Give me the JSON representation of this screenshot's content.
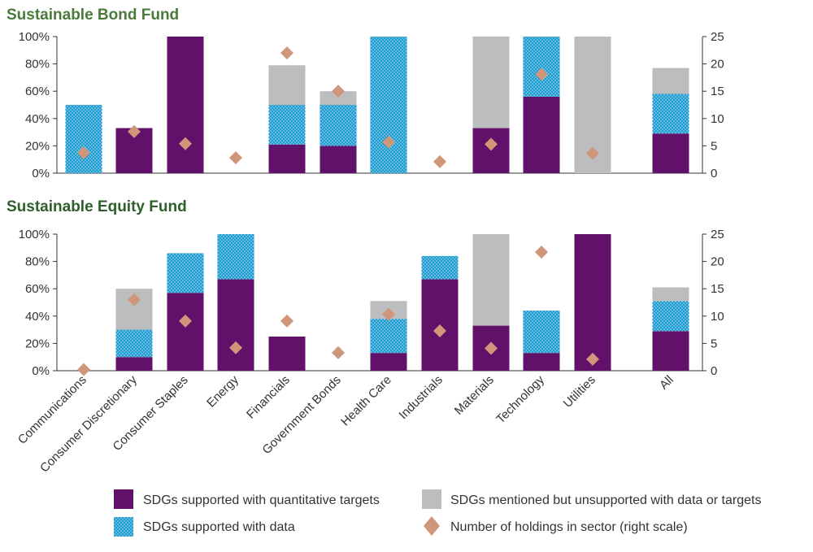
{
  "chart_data": [
    {
      "type": "bar",
      "title": "Sustainable Bond Fund",
      "categories": [
        "Communications",
        "Consumer Discretionary",
        "Consumer Staples",
        "Energy",
        "Financials",
        "Government Bonds",
        "Health Care",
        "Industrials",
        "Materials",
        "Technology",
        "Utilities",
        "All"
      ],
      "series": [
        {
          "name": "SDGs supported with quantitative targets",
          "values": [
            0,
            33,
            100,
            0,
            21,
            20,
            0,
            0,
            33,
            56,
            0,
            29
          ]
        },
        {
          "name": "SDGs supported with data",
          "values": [
            50,
            0,
            0,
            0,
            29,
            30,
            100,
            0,
            0,
            44,
            0,
            29
          ]
        },
        {
          "name": "SDGs mentioned but unsupported with data or targets",
          "values": [
            0,
            0,
            0,
            0,
            29,
            10,
            0,
            0,
            67,
            0,
            100,
            19
          ]
        },
        {
          "name": "Number of holdings in sector (right scale)",
          "axis": "right",
          "values": [
            3.7,
            7.6,
            5.4,
            2.8,
            22,
            15,
            5.7,
            2.1,
            5.3,
            18.1,
            3.6,
            null
          ]
        }
      ],
      "ylim": [
        0,
        100
      ],
      "y_ticks": [
        "0%",
        "20%",
        "40%",
        "60%",
        "80%",
        "100%"
      ],
      "y2lim": [
        0,
        25
      ],
      "y2_ticks": [
        "0",
        "5",
        "10",
        "15",
        "20",
        "25"
      ],
      "title_color": "#4a7a3a"
    },
    {
      "type": "bar",
      "title": "Sustainable Equity Fund",
      "categories": [
        "Communications",
        "Consumer Discretionary",
        "Consumer Staples",
        "Energy",
        "Financials",
        "Government Bonds",
        "Health Care",
        "Industrials",
        "Materials",
        "Technology",
        "Utilities",
        "All"
      ],
      "series": [
        {
          "name": "SDGs supported with quantitative targets",
          "values": [
            0,
            10,
            57,
            67,
            25,
            0,
            13,
            67,
            33,
            13,
            100,
            29
          ]
        },
        {
          "name": "SDGs supported with data",
          "values": [
            0,
            20,
            29,
            33,
            0,
            0,
            25,
            17,
            0,
            31,
            0,
            22
          ]
        },
        {
          "name": "SDGs mentioned but unsupported with data or targets",
          "values": [
            0,
            30,
            0,
            0,
            0,
            0,
            13,
            0,
            67,
            0,
            0,
            10
          ]
        },
        {
          "name": "Number of holdings in sector (right scale)",
          "axis": "right",
          "values": [
            0.2,
            13,
            9.1,
            4.2,
            9.1,
            3.3,
            10.3,
            7.3,
            4.1,
            21.7,
            2.1,
            null
          ]
        }
      ],
      "ylim": [
        0,
        100
      ],
      "y_ticks": [
        "0%",
        "20%",
        "40%",
        "60%",
        "80%",
        "100%"
      ],
      "y2lim": [
        0,
        25
      ],
      "y2_ticks": [
        "0",
        "5",
        "10",
        "15",
        "20",
        "25"
      ],
      "title_color": "#2e5e2a"
    }
  ],
  "legend": [
    {
      "label": "SDGs supported with quantitative targets",
      "swatch": "purple"
    },
    {
      "label": "SDGs mentioned but unsupported with data or targets",
      "swatch": "gray"
    },
    {
      "label": "SDGs supported with data",
      "swatch": "dotted"
    },
    {
      "label": "Number of holdings in sector (right scale)",
      "swatch": "diamond"
    }
  ],
  "colors": {
    "purple": "#62116a",
    "teal": "#1b9bd0",
    "gray": "#bcbdbf",
    "diamond": "#cf967a",
    "axis": "#333333"
  }
}
